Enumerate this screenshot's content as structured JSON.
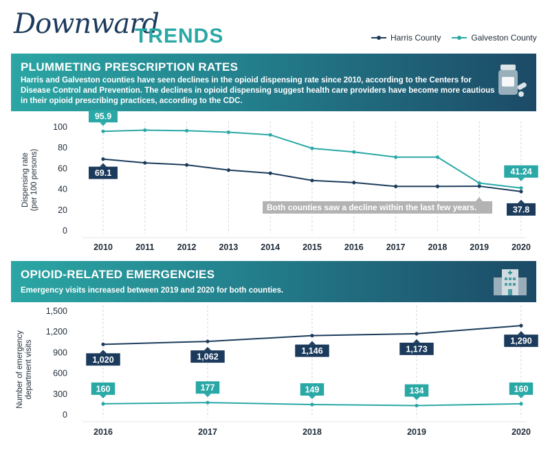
{
  "header": {
    "title_script": "Downward",
    "title_bold": "TRENDS"
  },
  "legend": [
    {
      "label": "Harris County",
      "color": "#1c3b5c"
    },
    {
      "label": "Galveston County",
      "color": "#2aa8a6"
    }
  ],
  "section1": {
    "title": "PLUMMETING PRESCRIPTION RATES",
    "text": "Harris and Galveston counties have seen declines in the opioid dispensing rate since 2010, according to the Centers for Disease Control and Prevention. The declines in opioid dispensing suggest health care providers have become more cautious in their opioid prescribing practices, according to the CDC.",
    "icon": "pill-bottle-icon"
  },
  "section2": {
    "title": "OPIOID-RELATED EMERGENCIES",
    "text": "Emergency visits increased between 2019 and 2020 for both counties.",
    "icon": "hospital-icon"
  },
  "colors": {
    "harris": "#1c3b5c",
    "galveston": "#2aa8a6",
    "note_bg": "#b3b3b3"
  },
  "chart_data": [
    {
      "type": "line",
      "ylabel": "Dispensing rate (per 100 persons)",
      "ylabel_lines": [
        "Dispensing rate",
        "(per 100 persons)"
      ],
      "x": [
        2010,
        2011,
        2012,
        2013,
        2014,
        2015,
        2016,
        2017,
        2018,
        2019,
        2020
      ],
      "x_labels": [
        "2010",
        "2011",
        "2012",
        "2013",
        "2014",
        "2015",
        "2016",
        "2017",
        "2018",
        "2019",
        "2020"
      ],
      "ylim": [
        0,
        100
      ],
      "yticks": [
        0,
        20,
        40,
        60,
        80,
        100
      ],
      "ytick_labels": [
        "0",
        "20",
        "40",
        "60",
        "80",
        "100"
      ],
      "grid": "vertical dashed",
      "series": [
        {
          "name": "Harris County",
          "values": [
            69.1,
            65.5,
            63.5,
            58.5,
            55.5,
            48.5,
            46.5,
            42.8,
            42.8,
            43.0,
            37.8
          ]
        },
        {
          "name": "Galveston County",
          "values": [
            95.9,
            97.0,
            96.5,
            95.0,
            92.5,
            79.5,
            76.0,
            71.0,
            71.0,
            46.0,
            41.24
          ]
        }
      ],
      "data_labels": [
        {
          "series": 0,
          "index": 0,
          "text": "69.1"
        },
        {
          "series": 0,
          "index": 10,
          "text": "37.8"
        },
        {
          "series": 1,
          "index": 0,
          "text": "95.9"
        },
        {
          "series": 1,
          "index": 10,
          "text": "41.24"
        }
      ],
      "annotation": "Both counties saw a decline within the last few years."
    },
    {
      "type": "line",
      "ylabel": "Number of emergency department visits",
      "ylabel_lines": [
        "Number of emergency",
        "department visits"
      ],
      "x": [
        2016,
        2017,
        2018,
        2019,
        2020
      ],
      "x_labels": [
        "2016",
        "2017",
        "2018",
        "2019",
        "2020"
      ],
      "ylim": [
        0,
        1500
      ],
      "yticks": [
        0,
        300,
        600,
        900,
        1200,
        1500
      ],
      "ytick_labels": [
        "0",
        "300",
        "600",
        "900",
        "1,200",
        "1,500"
      ],
      "grid": "vertical dashed",
      "series": [
        {
          "name": "Harris County",
          "values": [
            1020,
            1062,
            1146,
            1173,
            1290
          ]
        },
        {
          "name": "Galveston County",
          "values": [
            160,
            177,
            149,
            134,
            160
          ]
        }
      ],
      "data_labels": [
        {
          "series": 0,
          "index": 0,
          "text": "1,020"
        },
        {
          "series": 0,
          "index": 1,
          "text": "1,062"
        },
        {
          "series": 0,
          "index": 2,
          "text": "1,146"
        },
        {
          "series": 0,
          "index": 3,
          "text": "1,173"
        },
        {
          "series": 0,
          "index": 4,
          "text": "1,290"
        },
        {
          "series": 1,
          "index": 0,
          "text": "160"
        },
        {
          "series": 1,
          "index": 1,
          "text": "177"
        },
        {
          "series": 1,
          "index": 2,
          "text": "149"
        },
        {
          "series": 1,
          "index": 3,
          "text": "134"
        },
        {
          "series": 1,
          "index": 4,
          "text": "160"
        }
      ]
    }
  ]
}
